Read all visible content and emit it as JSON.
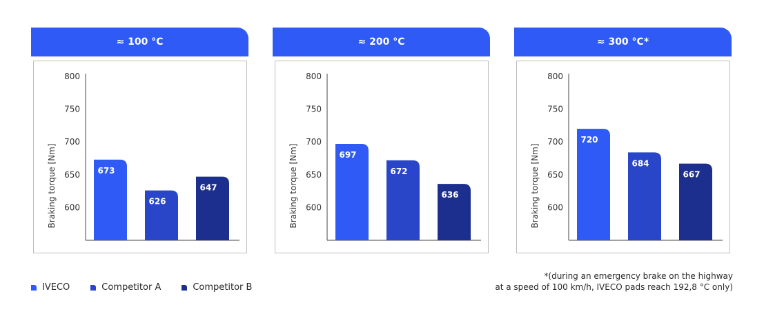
{
  "colors": {
    "header": "#2f5af5",
    "iveco": "#2f5af5",
    "competitor_a": "#2a46c8",
    "competitor_b": "#1c2f8e",
    "axis": "#444444"
  },
  "legend": [
    {
      "label": "IVECO",
      "color": "#2f5af5"
    },
    {
      "label": "Competitor A",
      "color": "#2a46c8"
    },
    {
      "label": "Competitor B",
      "color": "#1c2f8e"
    }
  ],
  "footnote": {
    "line1": "*(during an emergency brake on the highway",
    "line2": "at a speed of 100 km/h, IVECO pads reach 192,8 °C only)"
  },
  "chart_data": [
    {
      "type": "bar",
      "title": "≈ 100 °C",
      "ylabel": "Braking torque [Nm]",
      "ylim": [
        550,
        800
      ],
      "yticks": [
        600,
        650,
        700,
        750,
        800
      ],
      "categories": [
        "IVECO",
        "Competitor A",
        "Competitor B"
      ],
      "values": [
        673,
        626,
        647
      ]
    },
    {
      "type": "bar",
      "title": "≈ 200 °C",
      "ylabel": "Braking torque [Nm]",
      "ylim": [
        550,
        800
      ],
      "yticks": [
        600,
        650,
        700,
        750,
        800
      ],
      "categories": [
        "IVECO",
        "Competitor A",
        "Competitor B"
      ],
      "values": [
        697,
        672,
        636
      ]
    },
    {
      "type": "bar",
      "title": "≈ 300 °C*",
      "ylabel": "Braking torque [Nm]",
      "ylim": [
        550,
        800
      ],
      "yticks": [
        600,
        650,
        700,
        750,
        800
      ],
      "categories": [
        "IVECO",
        "Competitor A",
        "Competitor B"
      ],
      "values": [
        720,
        684,
        667
      ]
    }
  ]
}
